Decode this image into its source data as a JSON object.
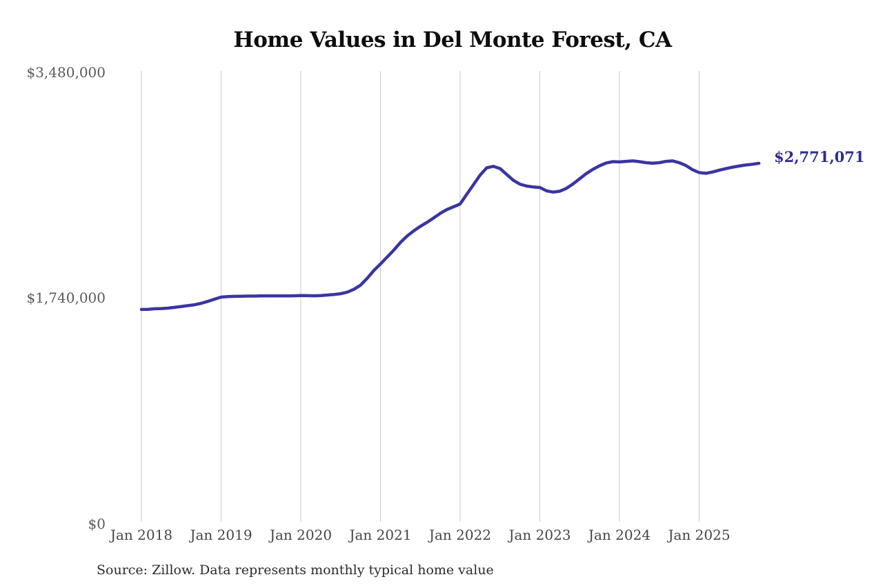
{
  "chart_data": {
    "type": "line",
    "title": "Home Values in Del Monte Forest, CA",
    "xlabel": "",
    "ylabel": "",
    "ylim": [
      0,
      3480000
    ],
    "grid": "vertical-only",
    "legend": "none",
    "x_unit": "month",
    "x_start_label": "Jan 2018",
    "x_end_label": "Oct 2025",
    "end_label": "$2,771,071",
    "end_value": 2771071,
    "y_ticks": [
      {
        "label": "$0",
        "value": 0
      },
      {
        "label": "$1,740,000",
        "value": 1740000
      },
      {
        "label": "$3,480,000",
        "value": 3480000
      }
    ],
    "x_ticks": [
      {
        "label": "Jan 2018",
        "month_index": 0
      },
      {
        "label": "Jan 2019",
        "month_index": 12
      },
      {
        "label": "Jan 2020",
        "month_index": 24
      },
      {
        "label": "Jan 2021",
        "month_index": 36
      },
      {
        "label": "Jan 2022",
        "month_index": 48
      },
      {
        "label": "Jan 2023",
        "month_index": 60
      },
      {
        "label": "Jan 2024",
        "month_index": 72
      },
      {
        "label": "Jan 2025",
        "month_index": 84
      }
    ],
    "series": [
      {
        "name": "Monthly typical home value",
        "color": "#3a35a2",
        "values": [
          1645000,
          1646000,
          1650000,
          1652000,
          1655000,
          1661000,
          1668000,
          1674000,
          1681000,
          1692000,
          1707000,
          1724000,
          1740000,
          1744000,
          1746000,
          1747000,
          1748000,
          1748000,
          1749000,
          1749000,
          1749000,
          1749000,
          1749000,
          1750000,
          1752000,
          1751000,
          1750000,
          1752000,
          1756000,
          1760000,
          1766000,
          1778000,
          1800000,
          1832000,
          1885000,
          1945000,
          1995000,
          2048000,
          2102000,
          2160000,
          2210000,
          2250000,
          2285000,
          2316000,
          2350000,
          2385000,
          2415000,
          2436000,
          2458000,
          2532000,
          2606000,
          2680000,
          2736000,
          2748000,
          2731000,
          2686000,
          2641000,
          2611000,
          2596000,
          2589000,
          2585000,
          2559000,
          2549000,
          2556000,
          2578000,
          2612000,
          2652000,
          2692000,
          2725000,
          2752000,
          2774000,
          2784000,
          2782000,
          2786000,
          2790000,
          2784000,
          2776000,
          2772000,
          2776000,
          2786000,
          2790000,
          2776000,
          2754000,
          2722000,
          2700000,
          2694000,
          2704000,
          2718000,
          2730000,
          2741000,
          2750000,
          2758000,
          2764000,
          2771071
        ]
      }
    ]
  },
  "source_note": "Source: Zillow. Data represents monthly typical home value",
  "colors": {
    "line": "#3a35a2",
    "end_label_text": "#2e2b8f",
    "gridline": "#c9c9c9",
    "y_tick_text": "#5a5a5a",
    "x_tick_text": "#454545",
    "title_text": "#0d0d0d",
    "source_text": "#2b2b2b",
    "background": "#ffffff"
  }
}
